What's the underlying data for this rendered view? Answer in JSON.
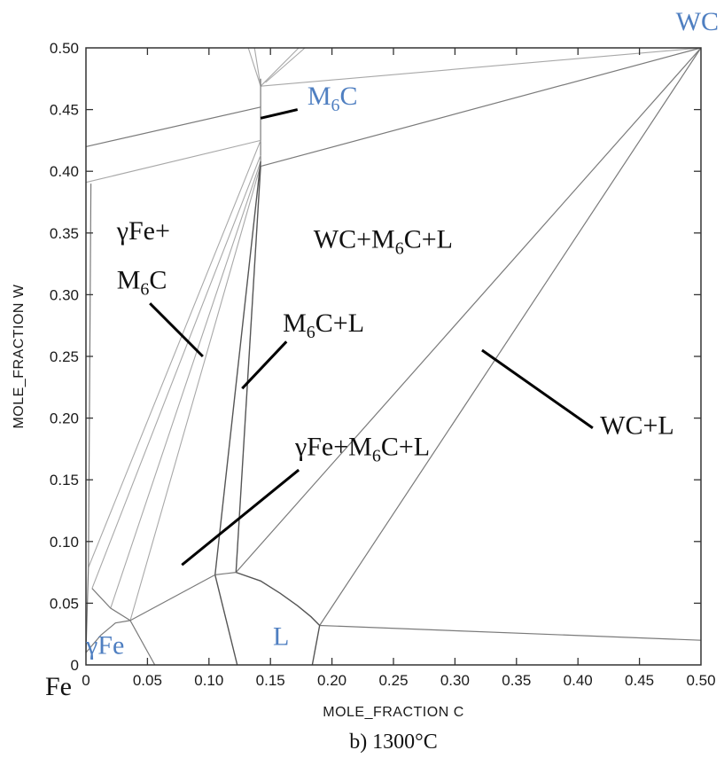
{
  "chart_data": {
    "type": "line",
    "subtype": "isothermal ternary phase diagram section",
    "caption": "b) 1300°C",
    "xlabel": "MOLE_FRACTION C",
    "ylabel": "MOLE_FRACTION W",
    "xlim": [
      0,
      0.5
    ],
    "ylim": [
      0,
      0.5
    ],
    "x_ticks": [
      "0",
      "0.05",
      "0.10",
      "0.15",
      "0.20",
      "0.25",
      "0.30",
      "0.35",
      "0.40",
      "0.45",
      "0.50"
    ],
    "y_ticks": [
      "0",
      "0.05",
      "0.10",
      "0.15",
      "0.20",
      "0.25",
      "0.30",
      "0.35",
      "0.40",
      "0.45",
      "0.50"
    ],
    "corner_labels": [
      {
        "id": "fe",
        "text": "Fe",
        "x": 0,
        "y": 0
      },
      {
        "id": "wc",
        "text": "WC",
        "x": 0.5,
        "y": 0.5
      }
    ],
    "phase_labels": [
      {
        "id": "m6c",
        "main": "M",
        "sub": "6",
        "tail": "C",
        "color": "#4f7fc1",
        "x": 0.18,
        "y": 0.454
      },
      {
        "id": "gfe-m6c-line1",
        "main": "γFe+",
        "x": 0.025,
        "y": 0.345
      },
      {
        "id": "gfe-m6c-line2",
        "main": "M",
        "sub": "6",
        "tail": "C",
        "x": 0.025,
        "y": 0.305
      },
      {
        "id": "wc-m6c-l",
        "main": "WC+M",
        "sub": "6",
        "tail": "C+L",
        "x": 0.185,
        "y": 0.338
      },
      {
        "id": "m6c-l",
        "main": "M",
        "sub": "6",
        "tail": "C+L",
        "x": 0.16,
        "y": 0.27
      },
      {
        "id": "gfe-m6c-l",
        "main": "γFe+M",
        "sub": "6",
        "tail": "C+L",
        "x": 0.17,
        "y": 0.17
      },
      {
        "id": "wc-l",
        "main": "WC+L",
        "x": 0.418,
        "y": 0.187
      },
      {
        "id": "l",
        "main": "L",
        "color": "#4f7fc1",
        "x": 0.152,
        "y": 0.016
      },
      {
        "id": "gfe",
        "main": "γFe",
        "color": "#4f7fc1",
        "x": 0.0,
        "y": 0.009
      }
    ],
    "phase_boundaries": [
      {
        "name": "upper-twophase-top",
        "points": [
          [
            0,
            0.42
          ],
          [
            0.142,
            0.452
          ]
        ]
      },
      {
        "name": "upper-twophase-bottom",
        "points": [
          [
            0,
            0.391
          ],
          [
            0.142,
            0.425
          ]
        ]
      },
      {
        "name": "m6c-wc-top",
        "points": [
          [
            0.142,
            0.469
          ],
          [
            0.5,
            0.5
          ]
        ]
      },
      {
        "name": "m6c-wc-bottom",
        "points": [
          [
            0.142,
            0.404
          ],
          [
            0.5,
            0.5
          ]
        ]
      },
      {
        "name": "wc-tie-1",
        "points": [
          [
            0.122,
            0.075
          ],
          [
            0.5,
            0.5
          ]
        ]
      },
      {
        "name": "wc-tie-2",
        "points": [
          [
            0.19,
            0.032
          ],
          [
            0.5,
            0.5
          ]
        ]
      },
      {
        "name": "liquid-wc-lower",
        "points": [
          [
            0.19,
            0.032
          ],
          [
            0.5,
            0.02
          ]
        ]
      },
      {
        "name": "m6c-top-left",
        "points": [
          [
            0.132,
            0.5
          ],
          [
            0.142,
            0.469
          ]
        ]
      },
      {
        "name": "m6c-top-mid",
        "points": [
          [
            0.137,
            0.5
          ],
          [
            0.142,
            0.469
          ]
        ]
      },
      {
        "name": "m6c-top-right",
        "points": [
          [
            0.173,
            0.5
          ],
          [
            0.142,
            0.469
          ]
        ]
      },
      {
        "name": "m6c-top-right2",
        "points": [
          [
            0.178,
            0.5
          ],
          [
            0.146,
            0.472
          ]
        ]
      },
      {
        "name": "m6c-vertical",
        "points": [
          [
            0.142,
            0.475
          ],
          [
            0.142,
            0.404
          ]
        ]
      },
      {
        "name": "gfe-m6c-1",
        "points": [
          [
            0.002,
            0.079
          ],
          [
            0.142,
            0.425
          ]
        ]
      },
      {
        "name": "gfe-m6c-2",
        "points": [
          [
            0.005,
            0.062
          ],
          [
            0.142,
            0.413
          ]
        ]
      },
      {
        "name": "gfe-m6c-3",
        "points": [
          [
            0.02,
            0.046
          ],
          [
            0.142,
            0.408
          ]
        ]
      },
      {
        "name": "gfe-m6c-4",
        "points": [
          [
            0.036,
            0.036
          ],
          [
            0.142,
            0.405
          ]
        ]
      },
      {
        "name": "m6c-liquid-left",
        "points": [
          [
            0.105,
            0.073
          ],
          [
            0.142,
            0.408
          ]
        ]
      },
      {
        "name": "m6c-liquid-right",
        "points": [
          [
            0.122,
            0.075
          ],
          [
            0.142,
            0.404
          ]
        ]
      },
      {
        "name": "three-phase-bottom",
        "points": [
          [
            0.036,
            0.036
          ],
          [
            0.105,
            0.073
          ]
        ]
      },
      {
        "name": "liquid-top-short",
        "points": [
          [
            0.105,
            0.073
          ],
          [
            0.122,
            0.075
          ]
        ]
      },
      {
        "name": "liquidus-curve",
        "points": [
          [
            0.122,
            0.075
          ],
          [
            0.142,
            0.068
          ],
          [
            0.158,
            0.058
          ],
          [
            0.172,
            0.048
          ],
          [
            0.183,
            0.039
          ],
          [
            0.19,
            0.032
          ]
        ]
      },
      {
        "name": "gfe-boundary-upper",
        "points": [
          [
            0.005,
            0.062
          ],
          [
            0.02,
            0.046
          ],
          [
            0.036,
            0.036
          ]
        ]
      },
      {
        "name": "gfe-boundary-lower",
        "points": [
          [
            0.0,
            0.01
          ],
          [
            0.012,
            0.024
          ],
          [
            0.024,
            0.034
          ],
          [
            0.036,
            0.036
          ]
        ]
      },
      {
        "name": "gfe-left-edge",
        "points": [
          [
            0.0,
            0.01
          ],
          [
            0.002,
            0.079
          ],
          [
            0.004,
            0.39
          ]
        ]
      },
      {
        "name": "gfe-bottom-right",
        "points": [
          [
            0.036,
            0.036
          ],
          [
            0.056,
            0.0
          ]
        ]
      },
      {
        "name": "liquid-left-edge",
        "points": [
          [
            0.105,
            0.073
          ],
          [
            0.123,
            0.0
          ]
        ]
      },
      {
        "name": "liquid-right-edge",
        "points": [
          [
            0.19,
            0.032
          ],
          [
            0.184,
            0.0
          ]
        ]
      }
    ],
    "leader_lines": [
      {
        "from": [
          0.142,
          0.443
        ],
        "to": [
          0.172,
          0.45
        ]
      },
      {
        "from": [
          0.052,
          0.293
        ],
        "to": [
          0.095,
          0.25
        ]
      },
      {
        "from": [
          0.163,
          0.262
        ],
        "to": [
          0.127,
          0.224
        ]
      },
      {
        "from": [
          0.173,
          0.158
        ],
        "to": [
          0.078,
          0.081
        ]
      },
      {
        "from": [
          0.412,
          0.192
        ],
        "to": [
          0.322,
          0.255
        ]
      }
    ],
    "grid": false,
    "legend": "none"
  }
}
